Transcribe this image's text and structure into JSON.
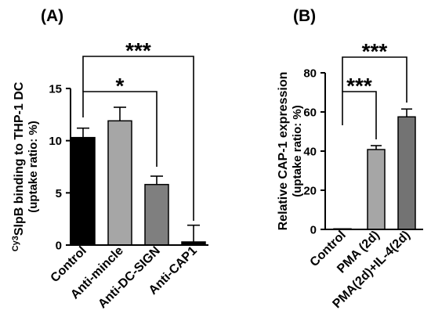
{
  "chart_data": [
    {
      "type": "bar",
      "panel_label": "(A)",
      "ylabel_sup": "Cy3",
      "ylabel": "SlpB binding to THP-1 DC",
      "ylabel_line2": "(uptake ratio: %)",
      "xlabel": "",
      "ylim": [
        0,
        15
      ],
      "yticks": [
        0,
        5,
        10,
        15
      ],
      "categories": [
        "Control",
        "Anti-mincle",
        "Anti-DC-SIGN",
        "Anti-CAP1"
      ],
      "values": [
        10.3,
        11.9,
        5.8,
        0.3
      ],
      "errors": [
        0.9,
        1.3,
        0.8,
        1.6
      ],
      "colors": [
        "#000000",
        "#a6a6a6",
        "#7f7f7f",
        "#000000"
      ],
      "grid": false,
      "significance": [
        {
          "from": "Control",
          "to": "Anti-DC-SIGN",
          "label": "*"
        },
        {
          "from": "Control",
          "to": "Anti-CAP1",
          "label": "***"
        }
      ]
    },
    {
      "type": "bar",
      "panel_label": "(B)",
      "ylabel": "Relative CAP-1 expression",
      "ylabel_line2": "(uptake ratio: %)",
      "xlabel": "",
      "ylim": [
        0,
        80
      ],
      "yticks": [
        0,
        20,
        40,
        60,
        80
      ],
      "categories": [
        "Control",
        "PMA (2d)",
        "PMA(2d)+IL-4(2d)"
      ],
      "values": [
        0.3,
        40.8,
        57.5
      ],
      "errors": [
        0,
        2.0,
        4.0
      ],
      "colors": [
        "#000000",
        "#a6a6a6",
        "#737373"
      ],
      "grid": false,
      "significance": [
        {
          "from": "Control",
          "to": "PMA (2d)",
          "label": "***"
        },
        {
          "from": "Control",
          "to": "PMA(2d)+IL-4(2d)",
          "label": "***"
        }
      ]
    }
  ]
}
